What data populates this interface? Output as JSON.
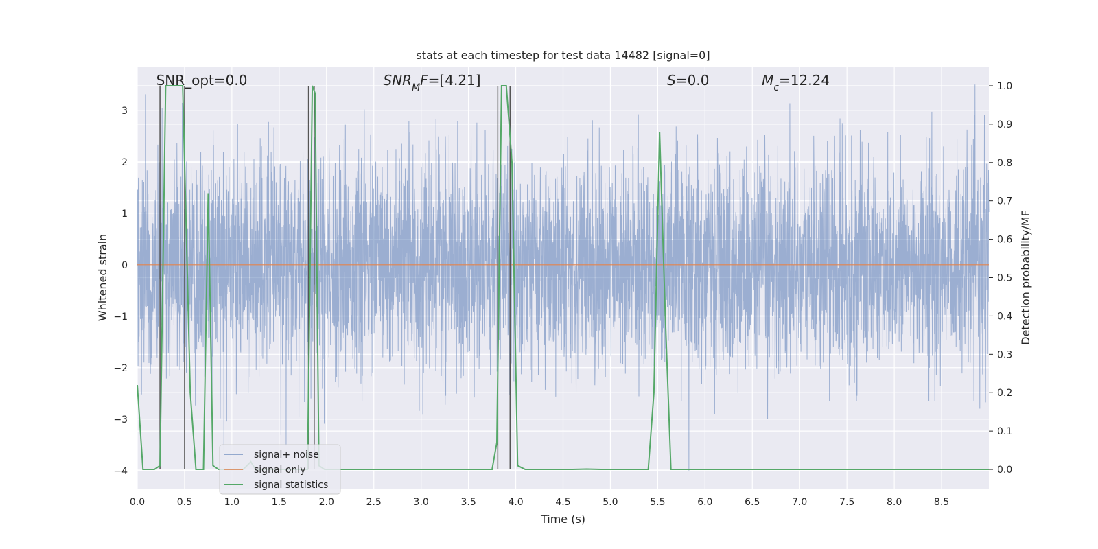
{
  "chart_data": {
    "type": "line",
    "title": "stats at each timestep for test data 14482 [signal=0]",
    "xlabel": "Time (s)",
    "ylabel": "Whitened strain",
    "y2label": "Detection probability/MF",
    "xlim": [
      0.0,
      9.0
    ],
    "ylim": [
      -4.35,
      3.85
    ],
    "y2lim": [
      -0.05,
      1.05
    ],
    "xticks": [
      0.0,
      0.5,
      1.0,
      1.5,
      2.0,
      2.5,
      3.0,
      3.5,
      4.0,
      4.5,
      5.0,
      5.5,
      6.0,
      6.5,
      7.0,
      7.5,
      8.0,
      8.5
    ],
    "xtick_labels": [
      "0.0",
      "0.5",
      "1.0",
      "1.5",
      "2.0",
      "2.5",
      "3.0",
      "3.5",
      "4.0",
      "4.5",
      "5.0",
      "5.5",
      "6.0",
      "6.5",
      "7.0",
      "7.5",
      "8.0",
      "8.5"
    ],
    "yticks": [
      3,
      2,
      1,
      0,
      -1,
      -2,
      -3,
      -4
    ],
    "ytick_labels": [
      "3",
      "2",
      "1",
      "0",
      "−1",
      "−2",
      "−3",
      "−4"
    ],
    "y2ticks": [
      1.0,
      0.9,
      0.8,
      0.7,
      0.6,
      0.5,
      0.4,
      0.3,
      0.2,
      0.1,
      0.0
    ],
    "y2tick_labels": [
      "1.0",
      "0.9",
      "0.8",
      "0.7",
      "0.6",
      "0.5",
      "0.4",
      "0.3",
      "0.2",
      "0.1",
      "0.0"
    ],
    "grid": true,
    "legend_position": "lower-left",
    "annotations": [
      {
        "text": "SNR_opt=0.0",
        "x": 0.2
      },
      {
        "text": "SNR_MF=[4.21]",
        "x": 2.6
      },
      {
        "text": "S=0.0",
        "x": 5.6
      },
      {
        "text": "M_c=12.24",
        "x": 6.6
      }
    ],
    "series": [
      {
        "name": "signal+ noise",
        "axis": "left",
        "color": "#4c72b0",
        "noise_rms": 1.0,
        "peak_max": 3.5,
        "peak_min": -4.0
      },
      {
        "name": "signal only",
        "axis": "left",
        "color": "#dd8452",
        "x": [
          0.0,
          9.0
        ],
        "y": [
          0.0,
          0.0
        ]
      },
      {
        "name": "signal statistics",
        "axis": "right",
        "color": "#55a868",
        "x": [
          0.0,
          0.06,
          0.18,
          0.24,
          0.3,
          0.48,
          0.56,
          0.62,
          0.7,
          0.75,
          0.8,
          0.86,
          1.12,
          1.2,
          1.25,
          1.4,
          1.8,
          1.85,
          1.88,
          1.92,
          1.98,
          2.1,
          3.75,
          3.8,
          3.85,
          3.9,
          3.96,
          4.02,
          4.1,
          4.6,
          4.75,
          4.9,
          5.4,
          5.46,
          5.52,
          5.58,
          5.64,
          5.7,
          9.0
        ],
        "y": [
          0.22,
          0.0,
          0.0,
          0.01,
          1.0,
          1.0,
          0.2,
          0.0,
          0.0,
          0.72,
          0.01,
          0.0,
          0.0,
          0.02,
          0.0,
          0.0,
          0.0,
          1.0,
          0.98,
          0.01,
          0.0,
          0.0,
          0.0,
          0.07,
          1.0,
          1.0,
          0.8,
          0.01,
          0.0,
          0.0,
          0.001,
          0.0,
          0.0,
          0.2,
          0.88,
          0.4,
          0.0,
          0.0,
          0.0
        ]
      }
    ],
    "vlines": [
      0.24,
      0.5,
      1.81,
      1.87,
      3.81,
      3.94
    ]
  }
}
